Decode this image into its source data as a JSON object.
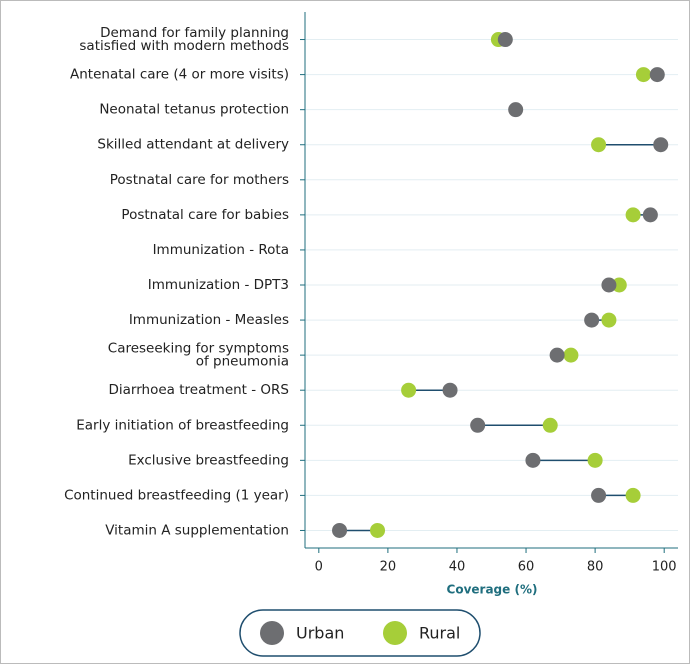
{
  "chart_data": {
    "type": "dumbbell",
    "categories": [
      [
        "Demand for family planning",
        "satisfied with modern methods"
      ],
      [
        "Antenatal care (4 or more visits)"
      ],
      [
        "Neonatal tetanus protection"
      ],
      [
        "Skilled attendant at delivery"
      ],
      [
        "Postnatal care for mothers"
      ],
      [
        "Postnatal care for babies"
      ],
      [
        "Immunization - Rota"
      ],
      [
        "Immunization - DPT3"
      ],
      [
        "Immunization - Measles"
      ],
      [
        "Careseeking for symptoms",
        "of pneumonia"
      ],
      [
        "Diarrhoea treatment - ORS"
      ],
      [
        "Early initiation of breastfeeding"
      ],
      [
        "Exclusive breastfeeding"
      ],
      [
        "Continued breastfeeding (1 year)"
      ],
      [
        "Vitamin A supplementation"
      ]
    ],
    "series": [
      {
        "name": "Urban",
        "color": "#6d6e71",
        "values": [
          54,
          98,
          57,
          99,
          null,
          96,
          null,
          84,
          79,
          69,
          38,
          46,
          62,
          81,
          6
        ]
      },
      {
        "name": "Rural",
        "color": "#a6ce39",
        "values": [
          52,
          94,
          null,
          81,
          null,
          91,
          null,
          87,
          84,
          73,
          26,
          67,
          80,
          91,
          17
        ]
      }
    ],
    "connector_color": "#1f4e6e",
    "xlabel": "Coverage (%)",
    "xlim": [
      -4,
      104
    ],
    "xticks": [
      0,
      20,
      40,
      60,
      80,
      100
    ]
  }
}
